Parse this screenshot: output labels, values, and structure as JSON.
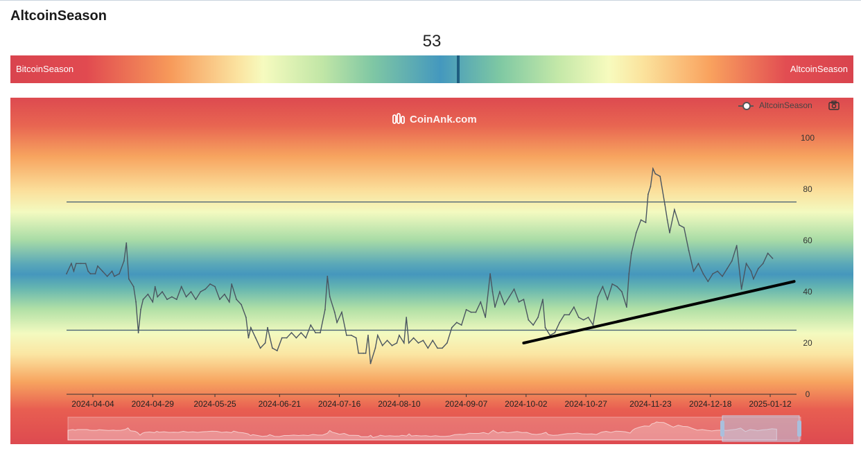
{
  "page": {
    "title": "AltcoinSeason"
  },
  "gauge": {
    "value": "53",
    "value_num": 53,
    "left_label": "BitcoinSeason",
    "right_label": "AltcoinSeason"
  },
  "chart": {
    "watermark": "CoinAnk.com",
    "legend_label": "AltcoinSeason",
    "toolbar_icon": "camera-icon",
    "line_color": "#4a5560",
    "threshold_color": "#3f5870",
    "trendline_color": "#000000"
  },
  "chart_data": {
    "type": "line",
    "title": "",
    "xlabel": "",
    "ylabel": "",
    "ylim": [
      0,
      100
    ],
    "yticks": [
      0,
      20,
      40,
      60,
      80,
      100
    ],
    "xticks": [
      "2024-04-04",
      "2024-04-29",
      "2024-05-25",
      "2024-06-21",
      "2024-07-16",
      "2024-08-10",
      "2024-09-07",
      "2024-10-02",
      "2024-10-27",
      "2024-11-23",
      "2024-12-18",
      "2025-01-12"
    ],
    "x_range": [
      "2024-03-24",
      "2025-01-23"
    ],
    "horizontal_lines": [
      75,
      25
    ],
    "annotation_trendline": {
      "from": {
        "x": "2024-10-01",
        "y": 20
      },
      "to": {
        "x": "2025-01-22",
        "y": 44
      }
    },
    "legend_position": "top-right",
    "grid": false,
    "series": [
      {
        "name": "AltcoinSeason",
        "points": [
          [
            "2024-03-24",
            47
          ],
          [
            "2024-03-26",
            51
          ],
          [
            "2024-03-27",
            48
          ],
          [
            "2024-03-28",
            51
          ],
          [
            "2024-03-30",
            51
          ],
          [
            "2024-04-01",
            51
          ],
          [
            "2024-04-02",
            48
          ],
          [
            "2024-04-03",
            47
          ],
          [
            "2024-04-05",
            47
          ],
          [
            "2024-04-06",
            50
          ],
          [
            "2024-04-08",
            48
          ],
          [
            "2024-04-10",
            46
          ],
          [
            "2024-04-12",
            48
          ],
          [
            "2024-04-13",
            46
          ],
          [
            "2024-04-15",
            47
          ],
          [
            "2024-04-17",
            52
          ],
          [
            "2024-04-18",
            59
          ],
          [
            "2024-04-19",
            45
          ],
          [
            "2024-04-21",
            42
          ],
          [
            "2024-04-22",
            36
          ],
          [
            "2024-04-23",
            24
          ],
          [
            "2024-04-24",
            33
          ],
          [
            "2024-04-25",
            37
          ],
          [
            "2024-04-27",
            39
          ],
          [
            "2024-04-29",
            36
          ],
          [
            "2024-04-30",
            42
          ],
          [
            "2024-05-01",
            38
          ],
          [
            "2024-05-03",
            40
          ],
          [
            "2024-05-05",
            37
          ],
          [
            "2024-05-07",
            38
          ],
          [
            "2024-05-09",
            37
          ],
          [
            "2024-05-11",
            42
          ],
          [
            "2024-05-13",
            38
          ],
          [
            "2024-05-15",
            40
          ],
          [
            "2024-05-17",
            37
          ],
          [
            "2024-05-19",
            40
          ],
          [
            "2024-05-21",
            41
          ],
          [
            "2024-05-23",
            43
          ],
          [
            "2024-05-25",
            42
          ],
          [
            "2024-05-27",
            37
          ],
          [
            "2024-05-29",
            39
          ],
          [
            "2024-05-31",
            36
          ],
          [
            "2024-06-01",
            43
          ],
          [
            "2024-06-03",
            37
          ],
          [
            "2024-06-05",
            35
          ],
          [
            "2024-06-07",
            30
          ],
          [
            "2024-06-08",
            22
          ],
          [
            "2024-06-09",
            26
          ],
          [
            "2024-06-11",
            22
          ],
          [
            "2024-06-13",
            18
          ],
          [
            "2024-06-15",
            20
          ],
          [
            "2024-06-16",
            26
          ],
          [
            "2024-06-18",
            18
          ],
          [
            "2024-06-20",
            17
          ],
          [
            "2024-06-22",
            22
          ],
          [
            "2024-06-24",
            22
          ],
          [
            "2024-06-26",
            24
          ],
          [
            "2024-06-28",
            22
          ],
          [
            "2024-06-30",
            24
          ],
          [
            "2024-07-02",
            22
          ],
          [
            "2024-07-04",
            27
          ],
          [
            "2024-07-06",
            24
          ],
          [
            "2024-07-08",
            24
          ],
          [
            "2024-07-10",
            33
          ],
          [
            "2024-07-11",
            46
          ],
          [
            "2024-07-12",
            38
          ],
          [
            "2024-07-14",
            32
          ],
          [
            "2024-07-15",
            28
          ],
          [
            "2024-07-17",
            32
          ],
          [
            "2024-07-19",
            23
          ],
          [
            "2024-07-21",
            23
          ],
          [
            "2024-07-23",
            22
          ],
          [
            "2024-07-24",
            16
          ],
          [
            "2024-07-26",
            16
          ],
          [
            "2024-07-27",
            16
          ],
          [
            "2024-07-28",
            23
          ],
          [
            "2024-07-29",
            12
          ],
          [
            "2024-07-31",
            18
          ],
          [
            "2024-08-01",
            23
          ],
          [
            "2024-08-03",
            19
          ],
          [
            "2024-08-05",
            21
          ],
          [
            "2024-08-07",
            19
          ],
          [
            "2024-08-09",
            20
          ],
          [
            "2024-08-10",
            23
          ],
          [
            "2024-08-12",
            20
          ],
          [
            "2024-08-13",
            30
          ],
          [
            "2024-08-14",
            20
          ],
          [
            "2024-08-16",
            22
          ],
          [
            "2024-08-18",
            20
          ],
          [
            "2024-08-20",
            21
          ],
          [
            "2024-08-22",
            18
          ],
          [
            "2024-08-24",
            21
          ],
          [
            "2024-08-26",
            18
          ],
          [
            "2024-08-28",
            18
          ],
          [
            "2024-08-30",
            20
          ],
          [
            "2024-09-01",
            26
          ],
          [
            "2024-09-03",
            28
          ],
          [
            "2024-09-05",
            27
          ],
          [
            "2024-09-07",
            33
          ],
          [
            "2024-09-09",
            32
          ],
          [
            "2024-09-11",
            32
          ],
          [
            "2024-09-13",
            36
          ],
          [
            "2024-09-15",
            30
          ],
          [
            "2024-09-17",
            47
          ],
          [
            "2024-09-18",
            40
          ],
          [
            "2024-09-19",
            34
          ],
          [
            "2024-09-21",
            40
          ],
          [
            "2024-09-23",
            35
          ],
          [
            "2024-09-25",
            38
          ],
          [
            "2024-09-27",
            41
          ],
          [
            "2024-09-29",
            36
          ],
          [
            "2024-10-01",
            37
          ],
          [
            "2024-10-03",
            29
          ],
          [
            "2024-10-05",
            27
          ],
          [
            "2024-10-07",
            30
          ],
          [
            "2024-10-09",
            37
          ],
          [
            "2024-10-10",
            26
          ],
          [
            "2024-10-12",
            23
          ],
          [
            "2024-10-14",
            24
          ],
          [
            "2024-10-16",
            28
          ],
          [
            "2024-10-18",
            31
          ],
          [
            "2024-10-20",
            31
          ],
          [
            "2024-10-22",
            34
          ],
          [
            "2024-10-24",
            30
          ],
          [
            "2024-10-26",
            29
          ],
          [
            "2024-10-28",
            30
          ],
          [
            "2024-10-30",
            27
          ],
          [
            "2024-11-01",
            38
          ],
          [
            "2024-11-03",
            42
          ],
          [
            "2024-11-05",
            37
          ],
          [
            "2024-11-07",
            43
          ],
          [
            "2024-11-09",
            42
          ],
          [
            "2024-11-11",
            40
          ],
          [
            "2024-11-13",
            34
          ],
          [
            "2024-11-14",
            47
          ],
          [
            "2024-11-15",
            55
          ],
          [
            "2024-11-17",
            63
          ],
          [
            "2024-11-19",
            68
          ],
          [
            "2024-11-21",
            67
          ],
          [
            "2024-11-22",
            78
          ],
          [
            "2024-11-23",
            81
          ],
          [
            "2024-11-24",
            88
          ],
          [
            "2024-11-25",
            86
          ],
          [
            "2024-11-27",
            85
          ],
          [
            "2024-11-29",
            74
          ],
          [
            "2024-11-30",
            68
          ],
          [
            "2024-12-01",
            63
          ],
          [
            "2024-12-03",
            72
          ],
          [
            "2024-12-05",
            66
          ],
          [
            "2024-12-07",
            65
          ],
          [
            "2024-12-09",
            56
          ],
          [
            "2024-12-11",
            48
          ],
          [
            "2024-12-13",
            51
          ],
          [
            "2024-12-15",
            47
          ],
          [
            "2024-12-17",
            44
          ],
          [
            "2024-12-19",
            47
          ],
          [
            "2024-12-21",
            48
          ],
          [
            "2024-12-23",
            46
          ],
          [
            "2024-12-25",
            49
          ],
          [
            "2024-12-27",
            52
          ],
          [
            "2024-12-29",
            58
          ],
          [
            "2024-12-31",
            41
          ],
          [
            "2025-01-02",
            51
          ],
          [
            "2025-01-04",
            48
          ],
          [
            "2025-01-05",
            45
          ],
          [
            "2025-01-07",
            49
          ],
          [
            "2025-01-09",
            51
          ],
          [
            "2025-01-11",
            55
          ],
          [
            "2025-01-13",
            53
          ]
        ]
      }
    ]
  }
}
